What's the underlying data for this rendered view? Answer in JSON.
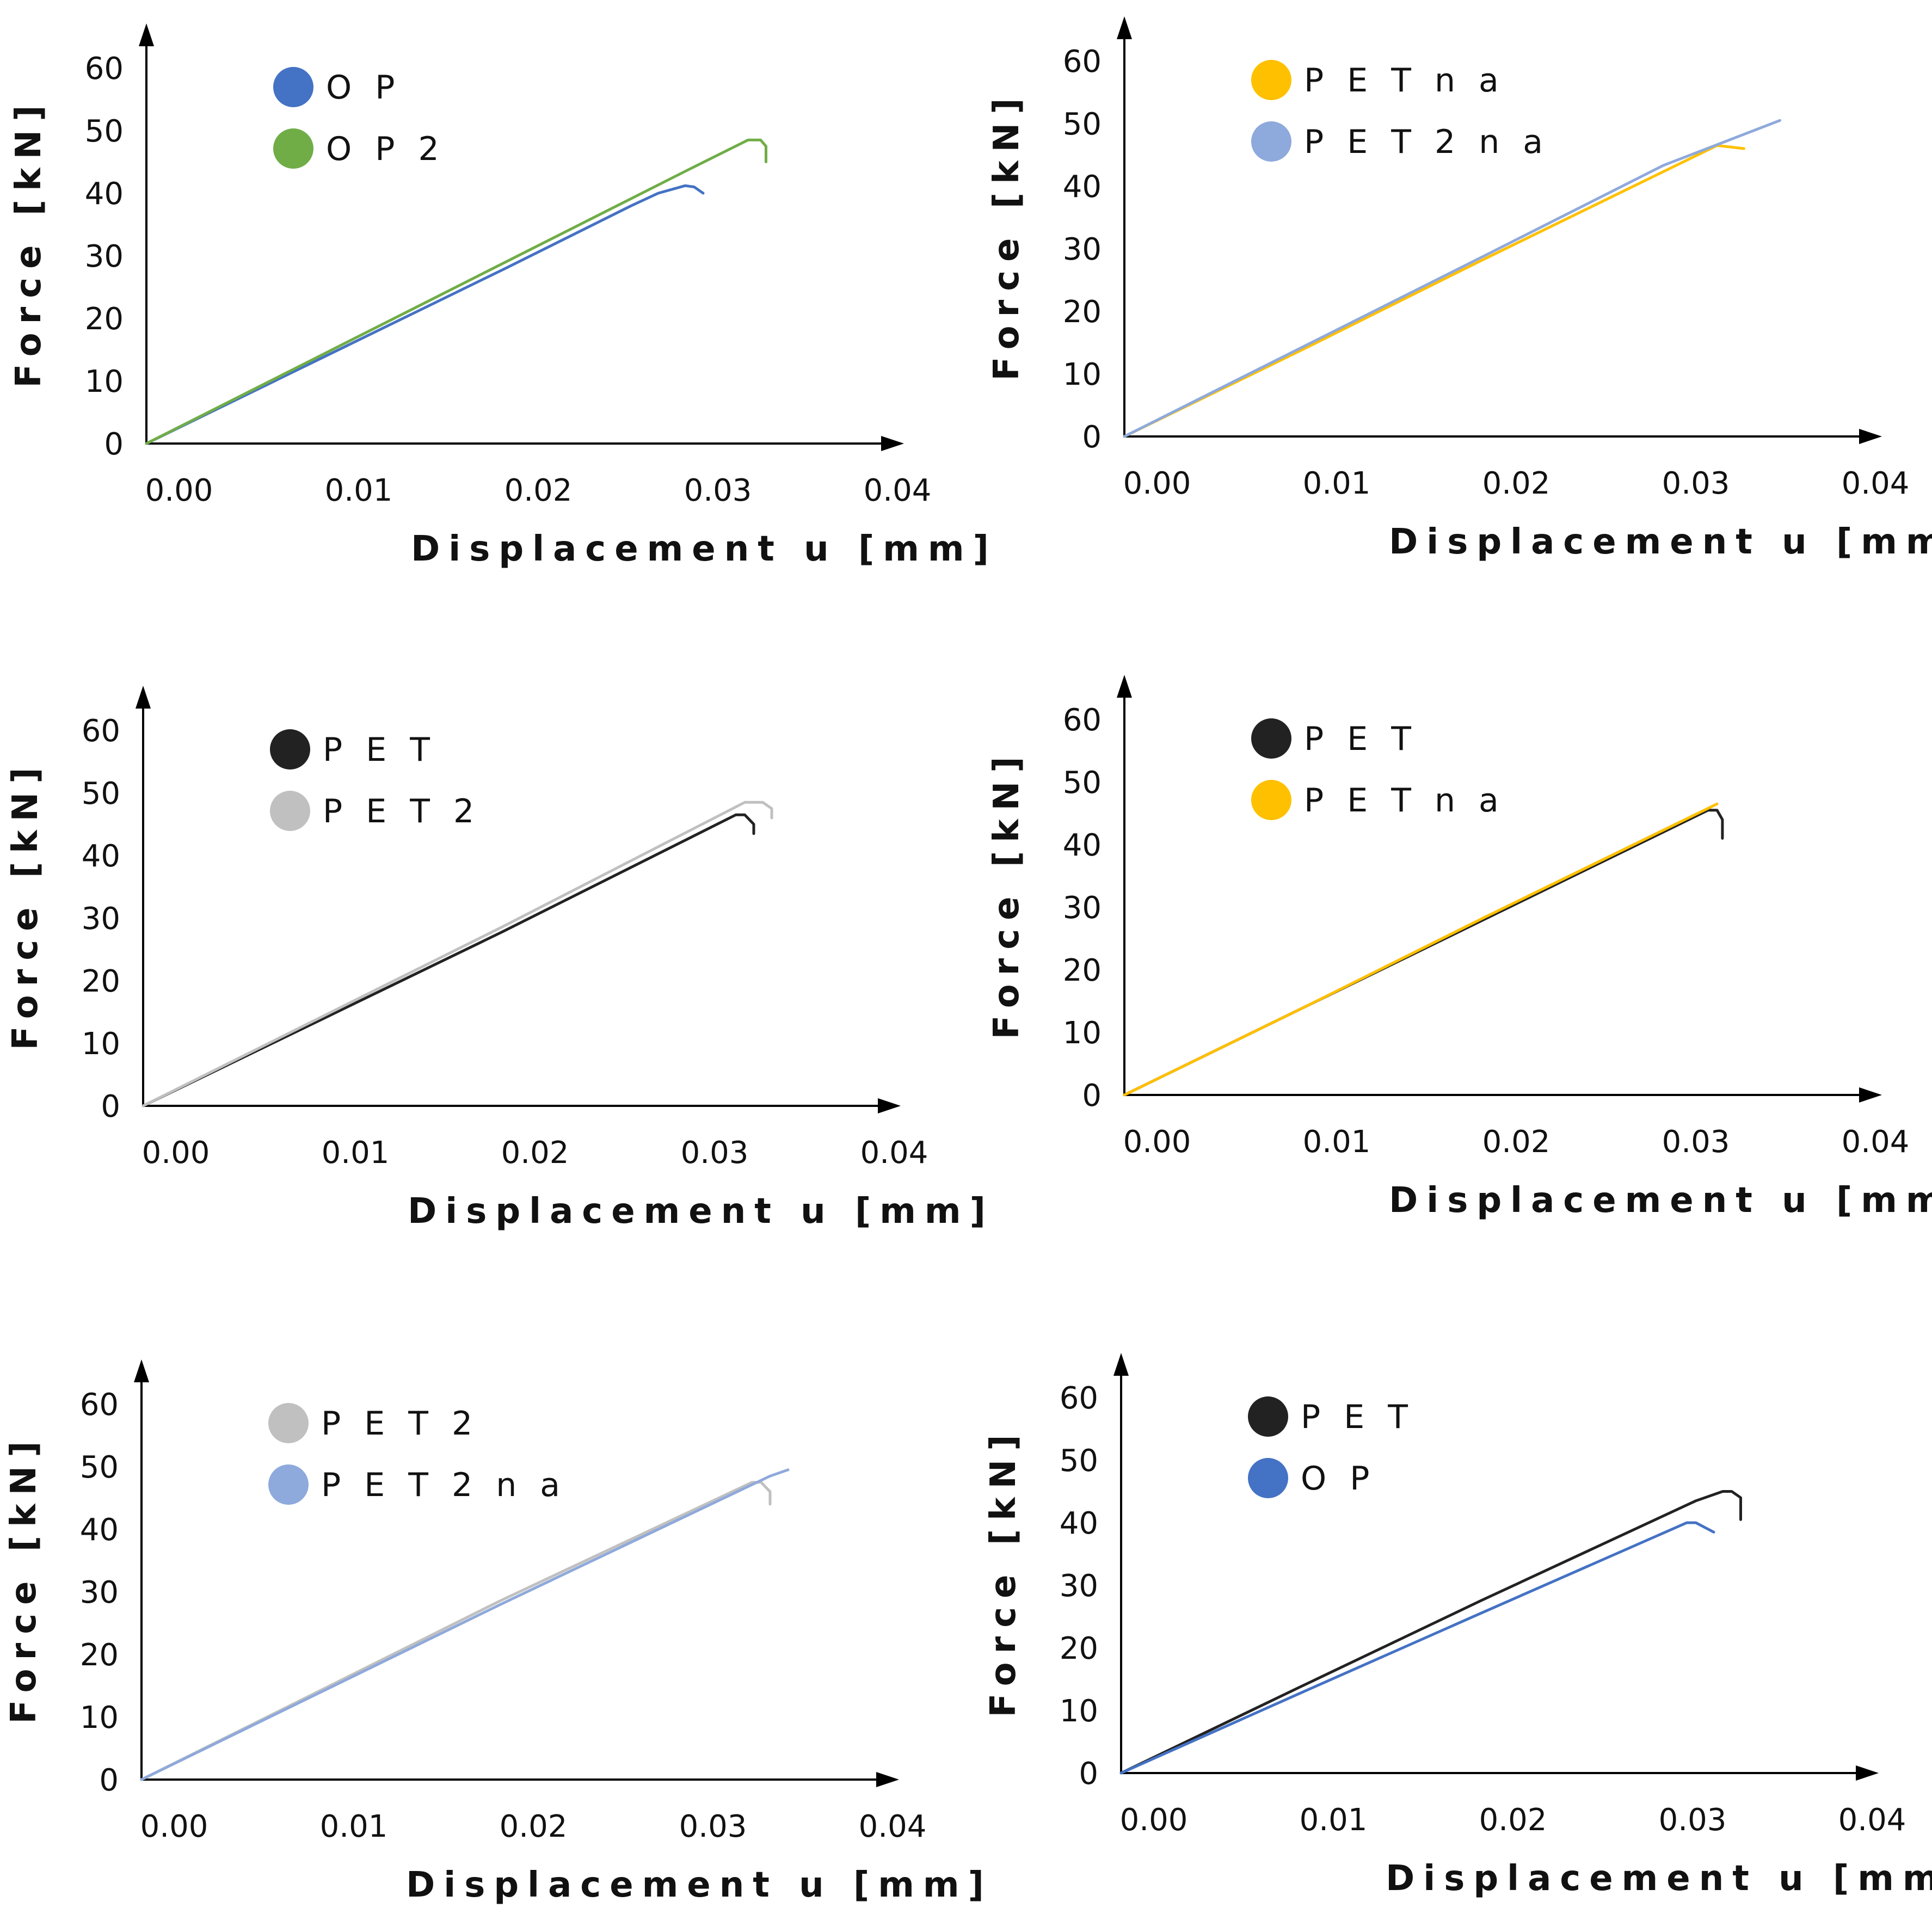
{
  "chart_data": [
    {
      "type": "line",
      "xlabel": "Displacement u [mm]",
      "ylabel": "Force [kN]",
      "xlim": [
        0,
        0.04
      ],
      "ylim": [
        0,
        60
      ],
      "xticks": [
        "0.00",
        "0.01",
        "0.02",
        "0.03",
        "0.04"
      ],
      "yticks": [
        "0",
        "10",
        "20",
        "30",
        "40",
        "50",
        "60"
      ],
      "legend_position": "top-left",
      "series": [
        {
          "name": "O P",
          "color": "#4472C4",
          "x": [
            0,
            0.01,
            0.02,
            0.027,
            0.0285,
            0.03,
            0.0305,
            0.031
          ],
          "y": [
            0,
            14.0,
            28.0,
            38.0,
            40.0,
            41.2,
            41.0,
            40.0
          ]
        },
        {
          "name": "O P 2",
          "color": "#70AD47",
          "x": [
            0,
            0.01,
            0.02,
            0.03,
            0.0335,
            0.0342,
            0.0345,
            0.0345
          ],
          "y": [
            0,
            14.5,
            29.0,
            43.5,
            48.5,
            48.5,
            47.5,
            45.0
          ]
        }
      ]
    },
    {
      "type": "line",
      "xlabel": "Displacement u [mm]",
      "ylabel": "Force [kN]",
      "xlim": [
        0,
        0.04
      ],
      "ylim": [
        0,
        60
      ],
      "xticks": [
        "0.00",
        "0.01",
        "0.02",
        "0.03",
        "0.04"
      ],
      "yticks": [
        "0",
        "10",
        "20",
        "30",
        "40",
        "50",
        "60"
      ],
      "legend_position": "top-left",
      "series": [
        {
          "name": "P E T n a",
          "color": "#FFC000",
          "x": [
            0,
            0.01,
            0.02,
            0.033,
            0.0345
          ],
          "y": [
            0,
            14.0,
            28.3,
            46.5,
            46.0
          ]
        },
        {
          "name": "P E T 2 n a",
          "color": "#8EA9DB",
          "x": [
            0,
            0.01,
            0.02,
            0.03,
            0.0365
          ],
          "y": [
            0,
            14.4,
            28.8,
            43.3,
            50.5
          ]
        }
      ]
    },
    {
      "type": "line",
      "xlabel": "Displacement u [mm]",
      "ylabel": "Force [kN]",
      "xlim": [
        0,
        0.04
      ],
      "ylim": [
        0,
        60
      ],
      "xticks": [
        "0.00",
        "0.01",
        "0.02",
        "0.03",
        "0.04"
      ],
      "yticks": [
        "0",
        "10",
        "20",
        "30",
        "40",
        "50",
        "60"
      ],
      "legend_position": "top-left",
      "series": [
        {
          "name": "P E T",
          "color": "#222222",
          "x": [
            0,
            0.01,
            0.02,
            0.033,
            0.0335,
            0.034,
            0.034
          ],
          "y": [
            0,
            13.9,
            27.8,
            46.5,
            46.5,
            45.0,
            43.5
          ]
        },
        {
          "name": "P E T 2",
          "color": "#C0C0C0",
          "x": [
            0,
            0.01,
            0.02,
            0.0335,
            0.0345,
            0.035,
            0.035
          ],
          "y": [
            0,
            14.3,
            28.6,
            48.5,
            48.5,
            47.5,
            46.0
          ]
        }
      ]
    },
    {
      "type": "line",
      "xlabel": "Displacement u [mm]",
      "ylabel": "Force [kN]",
      "xlim": [
        0,
        0.04
      ],
      "ylim": [
        0,
        60
      ],
      "xticks": [
        "0.00",
        "0.01",
        "0.02",
        "0.03",
        "0.04"
      ],
      "yticks": [
        "0",
        "10",
        "20",
        "30",
        "40",
        "50",
        "60"
      ],
      "legend_position": "top-left",
      "series": [
        {
          "name": "P E T",
          "color": "#222222",
          "x": [
            0,
            0.01,
            0.02,
            0.0325,
            0.033,
            0.0333,
            0.0333
          ],
          "y": [
            0,
            14.0,
            28.0,
            45.5,
            45.5,
            44.0,
            41.0
          ]
        },
        {
          "name": "P E T n a",
          "color": "#FFC000",
          "x": [
            0,
            0.01,
            0.02,
            0.033
          ],
          "y": [
            0,
            14.0,
            28.3,
            46.5
          ]
        }
      ]
    },
    {
      "type": "line",
      "xlabel": "Displacement u [mm]",
      "ylabel": "Force [kN]",
      "xlim": [
        0,
        0.04
      ],
      "ylim": [
        0,
        60
      ],
      "xticks": [
        "0.00",
        "0.01",
        "0.02",
        "0.03",
        "0.04"
      ],
      "yticks": [
        "0",
        "10",
        "20",
        "30",
        "40",
        "50",
        "60"
      ],
      "legend_position": "top-left",
      "series": [
        {
          "name": "P E T 2",
          "color": "#C0C0C0",
          "x": [
            0,
            0.01,
            0.02,
            0.034,
            0.0345,
            0.035,
            0.035
          ],
          "y": [
            0,
            14.3,
            28.6,
            47.5,
            47.5,
            46.0,
            44.0
          ]
        },
        {
          "name": "P E T 2 n a",
          "color": "#8EA9DB",
          "x": [
            0,
            0.01,
            0.02,
            0.035,
            0.036
          ],
          "y": [
            0,
            14.0,
            28.0,
            48.5,
            49.5
          ]
        }
      ]
    },
    {
      "type": "line",
      "xlabel": "Displacement u [mm]",
      "ylabel": "Force [kN]",
      "xlim": [
        0,
        0.04
      ],
      "ylim": [
        0,
        60
      ],
      "xticks": [
        "0.00",
        "0.01",
        "0.02",
        "0.03",
        "0.04"
      ],
      "yticks": [
        "0",
        "10",
        "20",
        "30",
        "40",
        "50",
        "60"
      ],
      "legend_position": "top-left",
      "series": [
        {
          "name": "P E T",
          "color": "#222222",
          "x": [
            0,
            0.01,
            0.02,
            0.032,
            0.0335,
            0.034,
            0.0345,
            0.0345
          ],
          "y": [
            0,
            13.8,
            27.5,
            43.5,
            45.0,
            45.0,
            44.0,
            40.5
          ]
        },
        {
          "name": "O P",
          "color": "#4472C4",
          "x": [
            0,
            0.01,
            0.02,
            0.0315,
            0.032,
            0.033
          ],
          "y": [
            0,
            12.8,
            25.5,
            40.0,
            40.0,
            38.5
          ]
        }
      ]
    }
  ]
}
